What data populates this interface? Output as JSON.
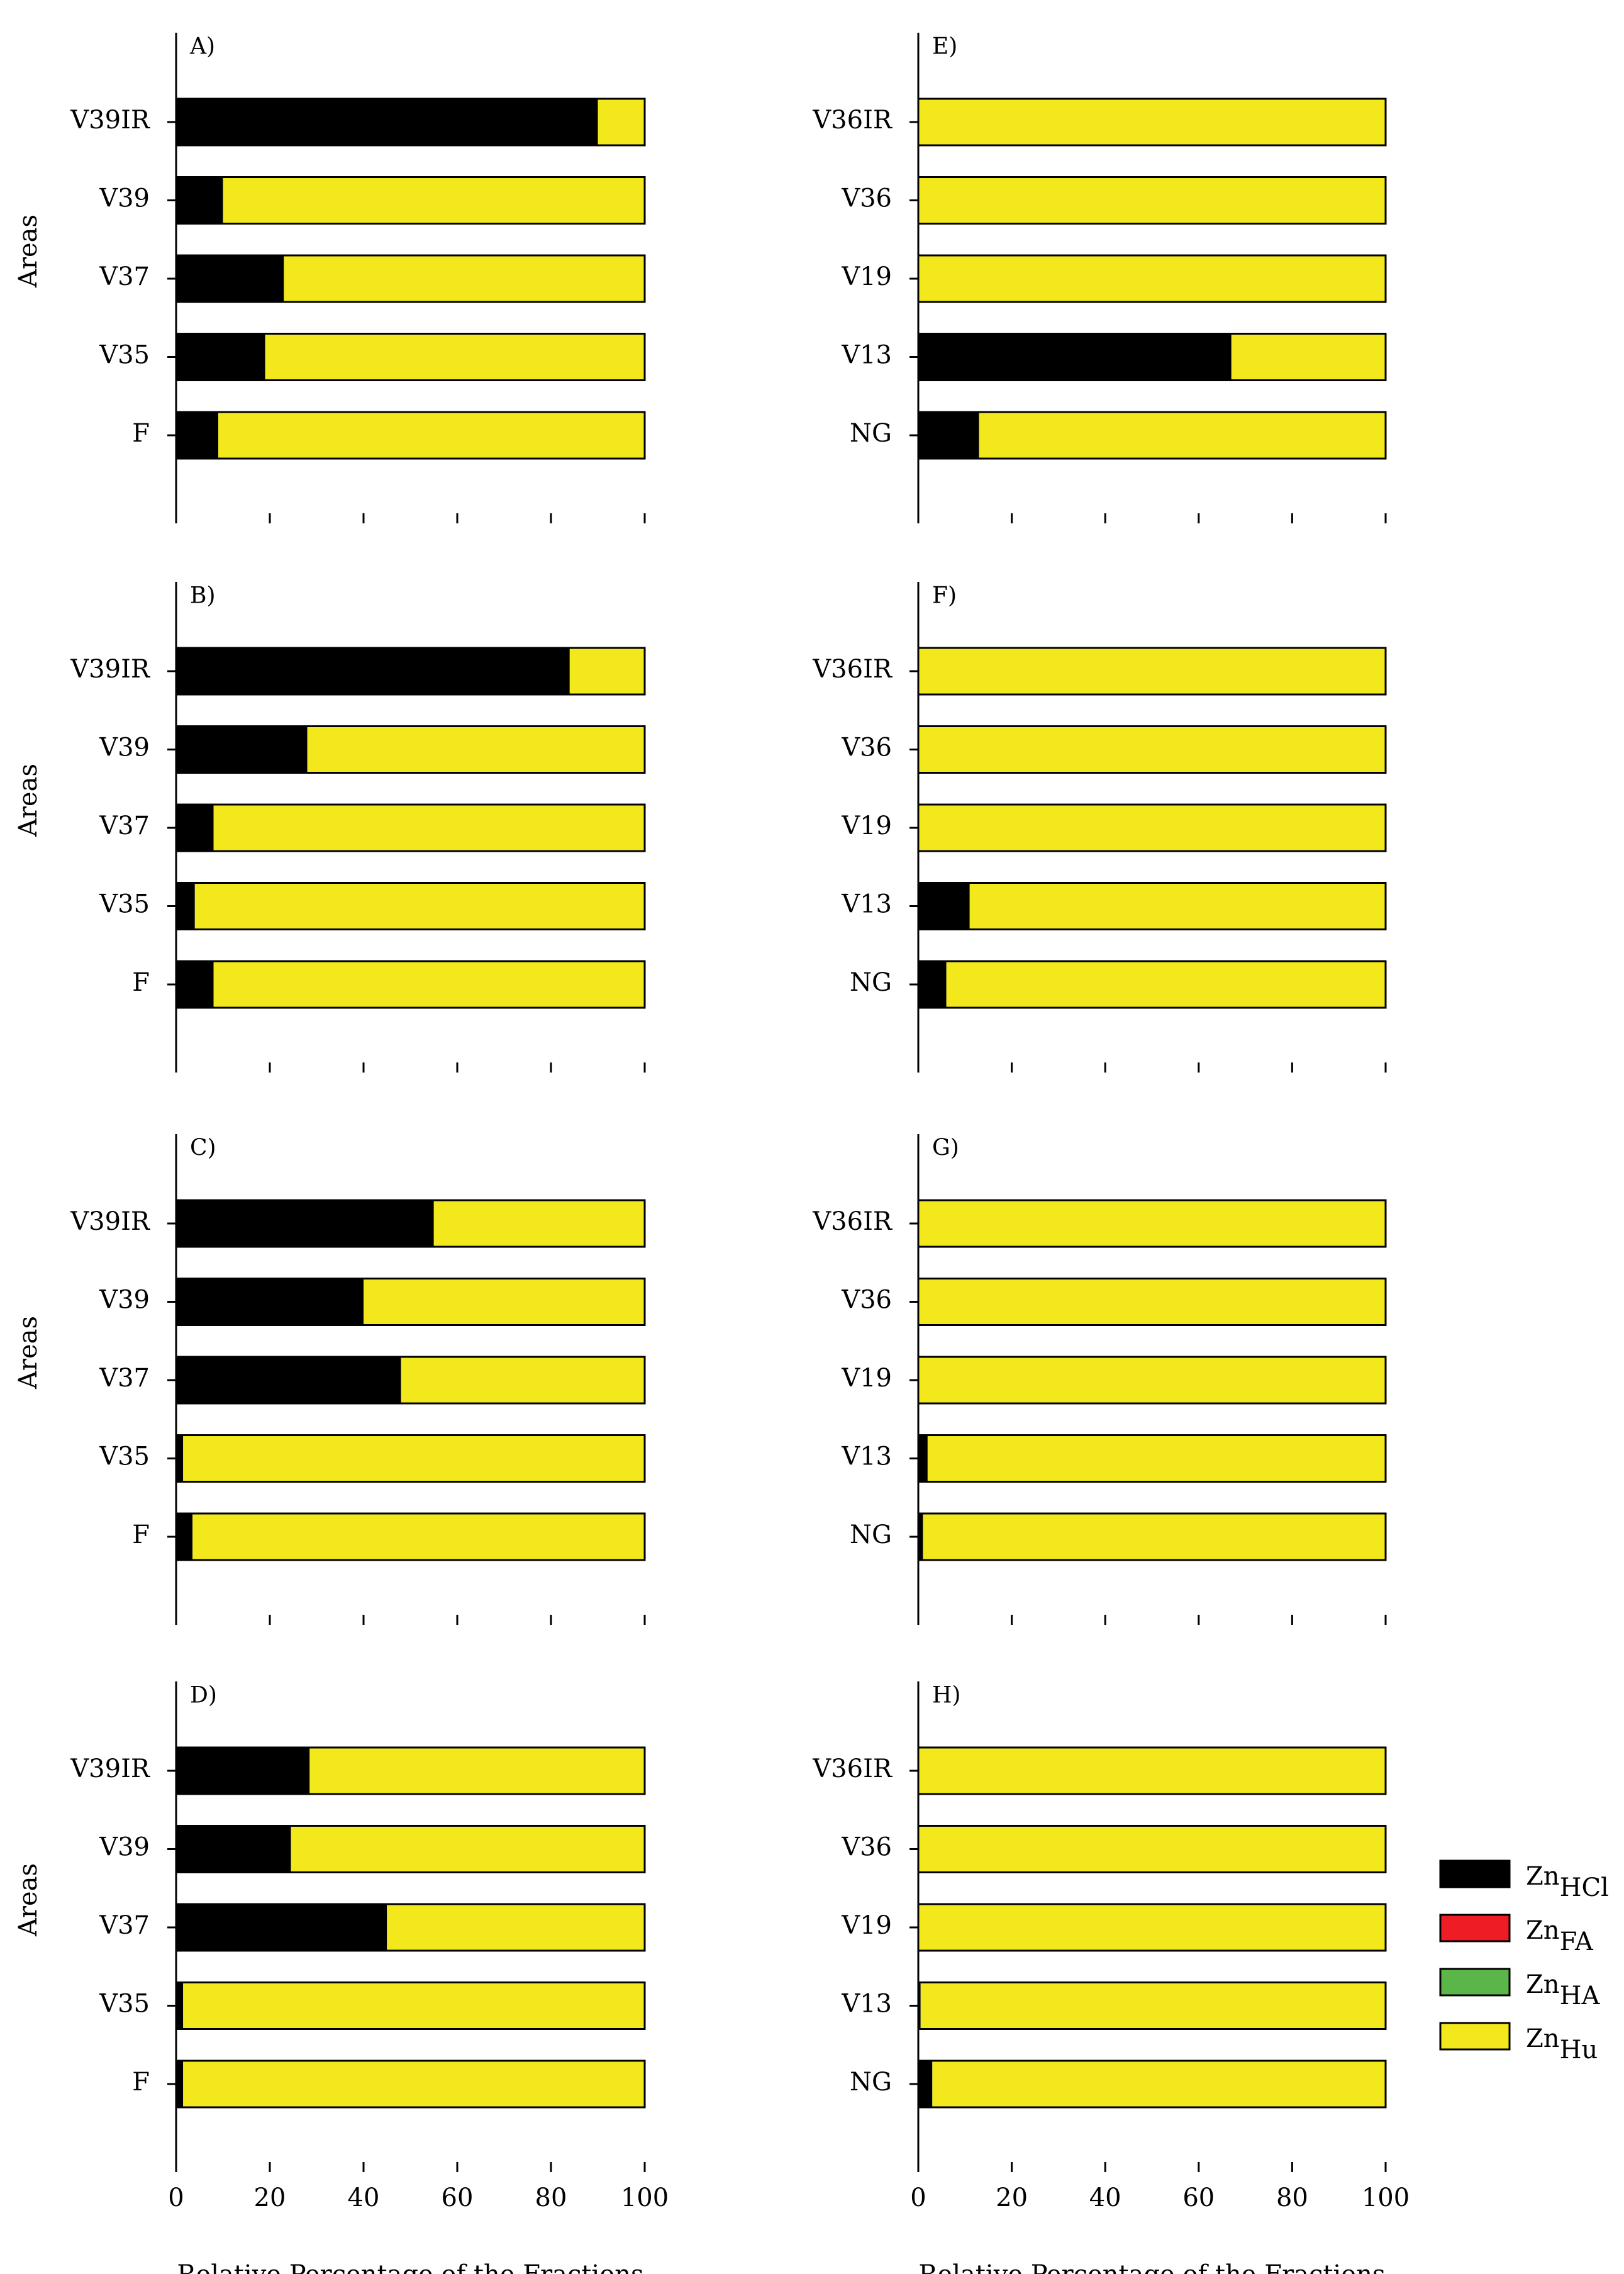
{
  "colors": {
    "ZnHCl": "#000000",
    "ZnFA": "#ee1c24",
    "ZnHA": "#5cb548",
    "ZnHu": "#f2e81c",
    "axis": "#000000",
    "background": "#ffffff"
  },
  "common": {
    "ylabel": "Areas",
    "xlabel": "Relative Percentage of the Fractions",
    "xticks": [
      "0",
      "20",
      "40",
      "60",
      "80",
      "100"
    ],
    "xlim": [
      0,
      100
    ]
  },
  "legend": {
    "position": "right",
    "items": [
      {
        "key": "ZnHCl",
        "base": "Zn",
        "sub": "HCl"
      },
      {
        "key": "ZnFA",
        "base": "Zn",
        "sub": "FA"
      },
      {
        "key": "ZnHA",
        "base": "Zn",
        "sub": "HA"
      },
      {
        "key": "ZnHu",
        "base": "Zn",
        "sub": "Hu"
      }
    ]
  },
  "chart_data": [
    {
      "panel": "A)",
      "type": "bar",
      "orientation": "horizontal",
      "stacked": true,
      "xlim": [
        0,
        100
      ],
      "categories": [
        "V39IR",
        "V39",
        "V37",
        "V35",
        "F"
      ],
      "series": [
        {
          "name": "ZnHCl",
          "values": [
            90,
            10,
            23,
            19,
            9
          ]
        },
        {
          "name": "ZnFA",
          "values": [
            0,
            0,
            0,
            0,
            0
          ]
        },
        {
          "name": "ZnHA",
          "values": [
            0,
            0,
            0,
            0,
            0
          ]
        },
        {
          "name": "ZnHu",
          "values": [
            10,
            90,
            77,
            81,
            91
          ]
        }
      ]
    },
    {
      "panel": "B)",
      "type": "bar",
      "orientation": "horizontal",
      "stacked": true,
      "xlim": [
        0,
        100
      ],
      "categories": [
        "V39IR",
        "V39",
        "V37",
        "V35",
        "F"
      ],
      "series": [
        {
          "name": "ZnHCl",
          "values": [
            84,
            28,
            8,
            4,
            8
          ]
        },
        {
          "name": "ZnFA",
          "values": [
            0,
            0,
            0,
            0,
            0
          ]
        },
        {
          "name": "ZnHA",
          "values": [
            0,
            0,
            0,
            0,
            0
          ]
        },
        {
          "name": "ZnHu",
          "values": [
            16,
            72,
            92,
            96,
            92
          ]
        }
      ]
    },
    {
      "panel": "C)",
      "type": "bar",
      "orientation": "horizontal",
      "stacked": true,
      "xlim": [
        0,
        100
      ],
      "categories": [
        "V39IR",
        "V39",
        "V37",
        "V35",
        "F"
      ],
      "series": [
        {
          "name": "ZnHCl",
          "values": [
            55,
            40,
            48,
            1.5,
            3.5
          ]
        },
        {
          "name": "ZnFA",
          "values": [
            0,
            0,
            0,
            0,
            0
          ]
        },
        {
          "name": "ZnHA",
          "values": [
            0,
            0,
            0,
            0,
            0
          ]
        },
        {
          "name": "ZnHu",
          "values": [
            45,
            60,
            52,
            98.5,
            96.5
          ]
        }
      ]
    },
    {
      "panel": "D)",
      "type": "bar",
      "orientation": "horizontal",
      "stacked": true,
      "xlim": [
        0,
        100
      ],
      "categories": [
        "V39IR",
        "V39",
        "V37",
        "V35",
        "F"
      ],
      "series": [
        {
          "name": "ZnHCl",
          "values": [
            28.5,
            24.5,
            45,
            1.5,
            1.5
          ]
        },
        {
          "name": "ZnFA",
          "values": [
            0,
            0,
            0,
            0,
            0
          ]
        },
        {
          "name": "ZnHA",
          "values": [
            0,
            0,
            0,
            0,
            0
          ]
        },
        {
          "name": "ZnHu",
          "values": [
            71.5,
            75.5,
            55,
            98.5,
            98.5
          ]
        }
      ]
    },
    {
      "panel": "E)",
      "type": "bar",
      "orientation": "horizontal",
      "stacked": true,
      "xlim": [
        0,
        100
      ],
      "categories": [
        "V36IR",
        "V36",
        "V19",
        "V13",
        "NG"
      ],
      "series": [
        {
          "name": "ZnHCl",
          "values": [
            0,
            0,
            0,
            67,
            13
          ]
        },
        {
          "name": "ZnFA",
          "values": [
            0,
            0,
            0,
            0,
            0
          ]
        },
        {
          "name": "ZnHA",
          "values": [
            0,
            0,
            0,
            0,
            0
          ]
        },
        {
          "name": "ZnHu",
          "values": [
            100,
            100,
            100,
            33,
            87
          ]
        }
      ]
    },
    {
      "panel": "F)",
      "type": "bar",
      "orientation": "horizontal",
      "stacked": true,
      "xlim": [
        0,
        100
      ],
      "categories": [
        "V36IR",
        "V36",
        "V19",
        "V13",
        "NG"
      ],
      "series": [
        {
          "name": "ZnHCl",
          "values": [
            0,
            0,
            0,
            11,
            6
          ]
        },
        {
          "name": "ZnFA",
          "values": [
            0,
            0,
            0,
            0,
            0
          ]
        },
        {
          "name": "ZnHA",
          "values": [
            0,
            0,
            0,
            0,
            0
          ]
        },
        {
          "name": "ZnHu",
          "values": [
            100,
            100,
            100,
            89,
            94
          ]
        }
      ]
    },
    {
      "panel": "G)",
      "type": "bar",
      "orientation": "horizontal",
      "stacked": true,
      "xlim": [
        0,
        100
      ],
      "categories": [
        "V36IR",
        "V36",
        "V19",
        "V13",
        "NG"
      ],
      "series": [
        {
          "name": "ZnHCl",
          "values": [
            0,
            0,
            0,
            2,
            1
          ]
        },
        {
          "name": "ZnFA",
          "values": [
            0,
            0,
            0,
            0,
            0
          ]
        },
        {
          "name": "ZnHA",
          "values": [
            0,
            0,
            0,
            0,
            0
          ]
        },
        {
          "name": "ZnHu",
          "values": [
            100,
            100,
            100,
            98,
            99
          ]
        }
      ]
    },
    {
      "panel": "H)",
      "type": "bar",
      "orientation": "horizontal",
      "stacked": true,
      "xlim": [
        0,
        100
      ],
      "categories": [
        "V36IR",
        "V36",
        "V19",
        "V13",
        "NG"
      ],
      "series": [
        {
          "name": "ZnHCl",
          "values": [
            0,
            0,
            0,
            0.5,
            3
          ]
        },
        {
          "name": "ZnFA",
          "values": [
            0,
            0,
            0,
            0,
            0
          ]
        },
        {
          "name": "ZnHA",
          "values": [
            0,
            0,
            0,
            0,
            0
          ]
        },
        {
          "name": "ZnHu",
          "values": [
            100,
            100,
            100,
            99.5,
            97
          ]
        }
      ]
    }
  ]
}
